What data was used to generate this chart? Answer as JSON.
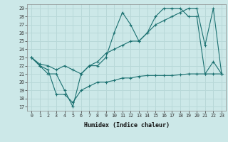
{
  "xlabel": "Humidex (Indice chaleur)",
  "bg_color": "#cce8e8",
  "line_color": "#1a7070",
  "grid_color": "#b8d8d8",
  "xlim": [
    -0.5,
    23.5
  ],
  "ylim": [
    16.5,
    29.5
  ],
  "yticks": [
    17,
    18,
    19,
    20,
    21,
    22,
    23,
    24,
    25,
    26,
    27,
    28,
    29
  ],
  "xticks": [
    0,
    1,
    2,
    3,
    4,
    5,
    6,
    7,
    8,
    9,
    10,
    11,
    12,
    13,
    14,
    15,
    16,
    17,
    18,
    19,
    20,
    21,
    22,
    23
  ],
  "line1_x": [
    0,
    1,
    2,
    3,
    4,
    5,
    6,
    7,
    8,
    9,
    10,
    11,
    12,
    13,
    14,
    15,
    16,
    17,
    18,
    19,
    20,
    21,
    22,
    23
  ],
  "line1_y": [
    23,
    22,
    21,
    21,
    19,
    17,
    21,
    22,
    22,
    23,
    26,
    28.5,
    27,
    25,
    26,
    28,
    29,
    29,
    29,
    28,
    28,
    21,
    22.5,
    21
  ],
  "line2_x": [
    0,
    1,
    2,
    3,
    4,
    5,
    6,
    7,
    8,
    9,
    10,
    11,
    12,
    13,
    14,
    15,
    16,
    17,
    18,
    19,
    20,
    21,
    22,
    23
  ],
  "line2_y": [
    23,
    22.2,
    22,
    21.5,
    22,
    21.5,
    21,
    22,
    22.5,
    23.5,
    24,
    24.5,
    25,
    25,
    26,
    27,
    27.5,
    28,
    28.5,
    29,
    29,
    24.5,
    29,
    21
  ],
  "line3_x": [
    0,
    1,
    2,
    3,
    4,
    5,
    6,
    7,
    8,
    9,
    10,
    11,
    12,
    13,
    14,
    15,
    16,
    17,
    18,
    19,
    20,
    21,
    22,
    23
  ],
  "line3_y": [
    23,
    22,
    21.5,
    18.5,
    18.5,
    17.5,
    19,
    19.5,
    20,
    20,
    20.2,
    20.5,
    20.5,
    20.7,
    20.8,
    20.8,
    20.8,
    20.8,
    20.9,
    21,
    21,
    21,
    21,
    21
  ]
}
